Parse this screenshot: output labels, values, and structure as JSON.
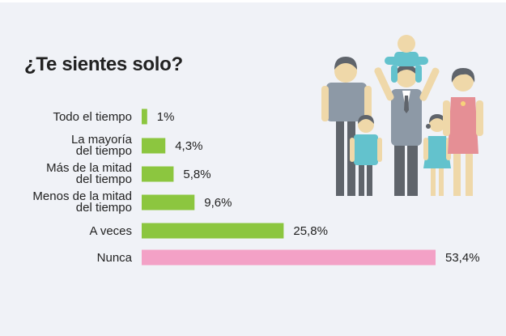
{
  "title": "¿Te sientes solo?",
  "chart_data": {
    "type": "bar",
    "orientation": "horizontal",
    "title": "¿Te sientes solo?",
    "categories": [
      [
        "Todo el tiempo"
      ],
      [
        "La mayoría",
        "del tiempo"
      ],
      [
        "Más de la mitad",
        "del tiempo"
      ],
      [
        "Menos de la mitad",
        "del tiempo"
      ],
      [
        "A veces"
      ],
      [
        "Nunca"
      ]
    ],
    "values": [
      1,
      4.3,
      5.8,
      9.6,
      25.8,
      53.4
    ],
    "value_labels": [
      "1%",
      "4,3%",
      "5,8%",
      "9,6%",
      "25,8%",
      "53,4%"
    ],
    "bar_colors": [
      "#8cc63f",
      "#8cc63f",
      "#8cc63f",
      "#8cc63f",
      "#8cc63f",
      "#f3a1c6"
    ],
    "xlim": [
      0,
      53.4
    ],
    "grid": false,
    "legend": "none"
  },
  "illustration": {
    "icon": "family-icon"
  }
}
